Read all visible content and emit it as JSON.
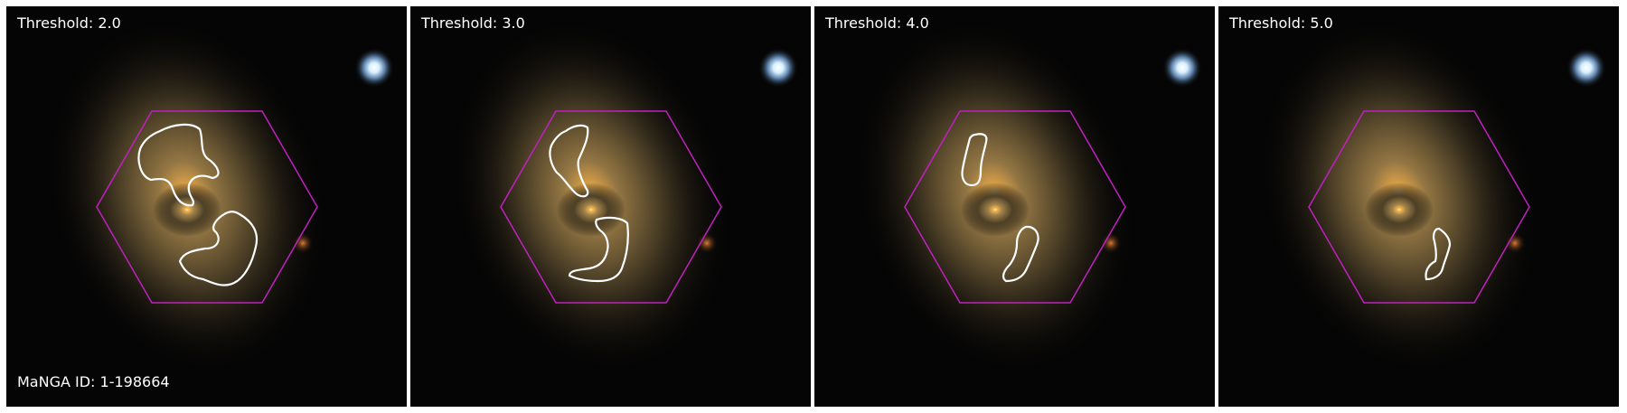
{
  "figure": {
    "manga_id_label": "MaNGA ID: 1-198664",
    "panels": [
      {
        "threshold_label": "Threshold: 2.0"
      },
      {
        "threshold_label": "Threshold: 3.0"
      },
      {
        "threshold_label": "Threshold: 4.0"
      },
      {
        "threshold_label": "Threshold: 5.0"
      }
    ],
    "colors": {
      "hexagon": "#c020c0",
      "contour": "#ffffff",
      "background": "#050505",
      "galaxy_core": "#f5b450",
      "galaxy_halo": "#6e5a32",
      "star": "#eaf6ff",
      "red_knot": "#d26a2a"
    }
  }
}
